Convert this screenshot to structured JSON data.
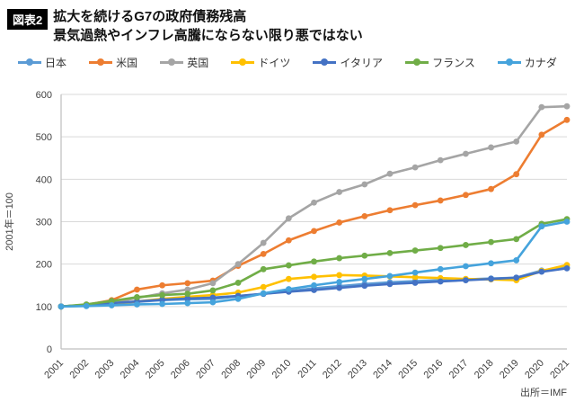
{
  "header": {
    "badge": "図表2",
    "title_line1": "拡大を続けるG7の政府債務残高",
    "title_line2": "景気過熱やインフレ高騰にならない限り悪ではない"
  },
  "source": "出所＝IMF",
  "colors": {
    "gridline": "#d9d9d9",
    "axis": "#bfbfbf",
    "tick_text": "#404040",
    "title_text": "#111111"
  },
  "chart_data": {
    "type": "line",
    "x": [
      2001,
      2002,
      2003,
      2004,
      2005,
      2006,
      2007,
      2008,
      2009,
      2010,
      2011,
      2012,
      2013,
      2014,
      2015,
      2016,
      2017,
      2018,
      2019,
      2020,
      2021
    ],
    "ylabel": "2001年＝100",
    "ylim": [
      0,
      600
    ],
    "ytick_step": 100,
    "grid": true,
    "legend_position": "top",
    "marker": "circle",
    "series": [
      {
        "key": "japan",
        "name": "日本",
        "color": "#5B9BD5",
        "values": [
          100,
          104,
          107,
          111,
          115,
          117,
          118,
          124,
          130,
          136,
          143,
          148,
          153,
          157,
          160,
          162,
          164,
          166,
          168,
          185,
          192
        ]
      },
      {
        "key": "us",
        "name": "米国",
        "color": "#ED7D31",
        "values": [
          100,
          104,
          115,
          140,
          150,
          155,
          161,
          196,
          224,
          256,
          278,
          298,
          313,
          327,
          339,
          350,
          363,
          377,
          412,
          505,
          540
        ]
      },
      {
        "key": "uk",
        "name": "英国",
        "color": "#A5A5A5",
        "values": [
          100,
          103,
          109,
          120,
          131,
          140,
          155,
          200,
          250,
          308,
          345,
          370,
          388,
          413,
          428,
          445,
          460,
          475,
          489,
          570,
          572
        ]
      },
      {
        "key": "germany",
        "name": "ドイツ",
        "color": "#FFC000",
        "values": [
          100,
          102,
          106,
          112,
          118,
          123,
          127,
          133,
          146,
          165,
          170,
          174,
          173,
          171,
          169,
          167,
          165,
          164,
          162,
          184,
          198
        ]
      },
      {
        "key": "italy",
        "name": "イタリア",
        "color": "#4472C4",
        "values": [
          100,
          104,
          108,
          112,
          116,
          119,
          121,
          125,
          130,
          135,
          139,
          144,
          149,
          153,
          156,
          159,
          162,
          165,
          168,
          182,
          190
        ]
      },
      {
        "key": "france",
        "name": "フランス",
        "color": "#70AD47",
        "values": [
          100,
          105,
          113,
          122,
          127,
          130,
          138,
          156,
          188,
          197,
          206,
          214,
          220,
          226,
          232,
          238,
          245,
          252,
          259,
          295,
          306
        ]
      },
      {
        "key": "canada",
        "name": "カナダ",
        "color": "#45A3DC",
        "values": [
          100,
          101,
          103,
          105,
          106,
          108,
          110,
          118,
          131,
          141,
          150,
          158,
          165,
          172,
          180,
          188,
          195,
          202,
          209,
          289,
          300
        ]
      }
    ]
  }
}
